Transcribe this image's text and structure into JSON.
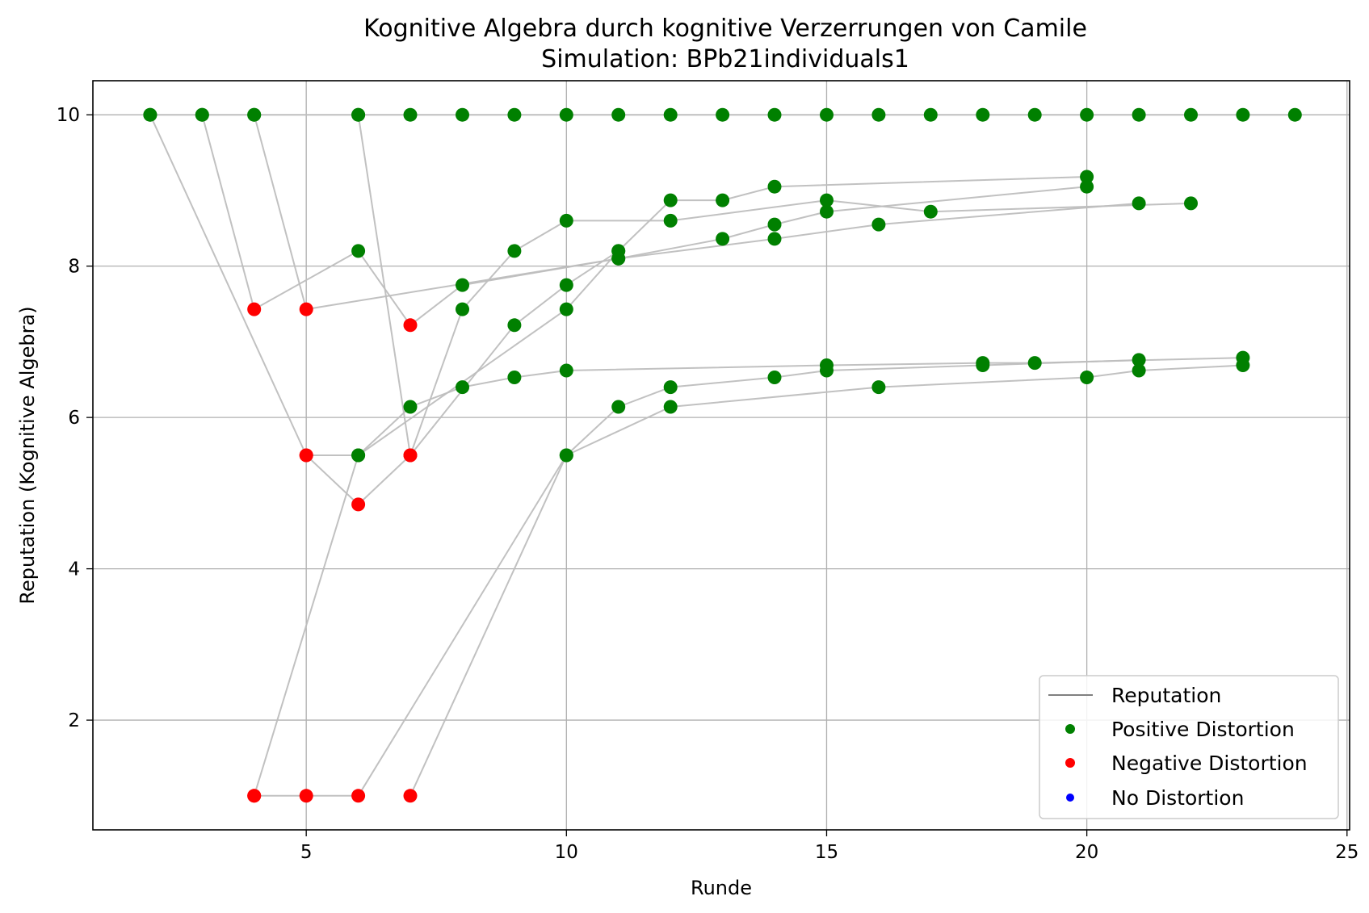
{
  "chart_data": {
    "type": "scatter",
    "title": "Kognitive Algebra durch kognitive Verzerrungen von Camile",
    "subtitle": "Simulation: BPb21individuals1",
    "xlabel": "Runde",
    "ylabel": "Reputation (Kognitive Algebra)",
    "xlim": [
      0.9,
      25.05
    ],
    "ylim": [
      0.55,
      10.45
    ],
    "xticks": [
      5,
      10,
      15,
      20,
      25
    ],
    "yticks": [
      2,
      4,
      6,
      8,
      10
    ],
    "grid": true,
    "legend": {
      "placement": "bottom-right",
      "entries": [
        {
          "label": "Reputation",
          "marker": "line",
          "color": "#808080"
        },
        {
          "label": "Positive Distortion",
          "marker": "dot",
          "color": "#008000"
        },
        {
          "label": "Negative Distortion",
          "marker": "dot",
          "color": "#ff0000"
        },
        {
          "label": "No Distortion",
          "marker": "dot",
          "color": "#0000ff"
        }
      ]
    },
    "colors": {
      "positive": "#008000",
      "negative": "#ff0000",
      "none": "#0000ff",
      "line": "#bebebe"
    },
    "series": [
      {
        "points": [
          [
            2,
            10
          ],
          [
            3,
            10
          ],
          [
            4,
            10
          ],
          [
            6,
            10
          ],
          [
            7,
            10
          ],
          [
            8,
            10
          ],
          [
            9,
            10
          ],
          [
            10,
            10
          ],
          [
            11,
            10
          ],
          [
            12,
            10
          ],
          [
            13,
            10
          ],
          [
            14,
            10
          ],
          [
            15,
            10
          ],
          [
            16,
            10
          ],
          [
            17,
            10
          ],
          [
            18,
            10
          ],
          [
            19,
            10
          ],
          [
            20,
            10
          ],
          [
            21,
            10
          ],
          [
            22,
            10
          ],
          [
            23,
            10
          ],
          [
            24,
            10
          ]
        ],
        "distortion": [
          "positive",
          "positive",
          "positive",
          "positive",
          "positive",
          "positive",
          "positive",
          "positive",
          "positive",
          "positive",
          "positive",
          "positive",
          "positive",
          "positive",
          "positive",
          "positive",
          "positive",
          "positive",
          "positive",
          "positive",
          "positive",
          "positive"
        ]
      },
      {
        "points": [
          [
            2,
            10
          ],
          [
            5,
            5.5
          ],
          [
            6,
            4.85
          ],
          [
            7,
            5.5
          ],
          [
            9,
            7.22
          ],
          [
            10,
            7.75
          ],
          [
            11,
            8.2
          ],
          [
            12,
            8.87
          ],
          [
            13,
            8.87
          ],
          [
            14,
            9.05
          ],
          [
            20,
            9.18
          ]
        ],
        "distortion": [
          "positive",
          "negative",
          "negative",
          "negative",
          "positive",
          "positive",
          "positive",
          "positive",
          "positive",
          "positive",
          "positive"
        ]
      },
      {
        "points": [
          [
            3,
            10
          ],
          [
            4,
            7.43
          ],
          [
            6,
            8.2
          ],
          [
            7,
            7.22
          ],
          [
            8,
            7.75
          ],
          [
            11,
            8.1
          ],
          [
            14,
            8.36
          ],
          [
            16,
            8.55
          ],
          [
            21,
            8.83
          ]
        ],
        "distortion": [
          "positive",
          "negative",
          "positive",
          "negative",
          "positive",
          "positive",
          "positive",
          "positive",
          "positive"
        ]
      },
      {
        "points": [
          [
            4,
            10
          ],
          [
            5,
            7.43
          ],
          [
            11,
            8.1
          ],
          [
            13,
            8.36
          ],
          [
            14,
            8.55
          ],
          [
            15,
            8.72
          ],
          [
            20,
            9.05
          ]
        ],
        "distortion": [
          "positive",
          "negative",
          "positive",
          "positive",
          "positive",
          "positive",
          "positive"
        ]
      },
      {
        "points": [
          [
            6,
            10
          ],
          [
            7,
            5.5
          ],
          [
            8,
            7.43
          ],
          [
            9,
            8.2
          ],
          [
            10,
            8.6
          ],
          [
            12,
            8.6
          ],
          [
            15,
            8.87
          ],
          [
            17,
            8.72
          ],
          [
            22,
            8.83
          ]
        ],
        "distortion": [
          "positive",
          "negative",
          "positive",
          "positive",
          "positive",
          "positive",
          "positive",
          "positive",
          "positive"
        ]
      },
      {
        "points": [
          [
            5,
            5.5
          ],
          [
            6,
            5.5
          ],
          [
            7,
            6.14
          ],
          [
            8,
            6.4
          ],
          [
            9,
            6.53
          ],
          [
            10,
            6.62
          ],
          [
            15,
            6.69
          ],
          [
            18,
            6.72
          ],
          [
            19,
            6.72
          ],
          [
            23,
            6.79
          ]
        ],
        "distortion": [
          "negative",
          "positive",
          "positive",
          "positive",
          "positive",
          "positive",
          "positive",
          "positive",
          "positive",
          "positive"
        ]
      },
      {
        "points": [
          [
            4,
            1
          ],
          [
            6,
            5.5
          ],
          [
            10,
            7.43
          ],
          [
            11,
            8.2
          ]
        ],
        "distortion": [
          "negative",
          "positive",
          "positive",
          "positive"
        ]
      },
      {
        "points": [
          [
            4,
            1
          ],
          [
            5,
            1
          ],
          [
            6,
            1
          ],
          [
            10,
            5.5
          ],
          [
            11,
            6.14
          ],
          [
            12,
            6.4
          ],
          [
            14,
            6.53
          ],
          [
            15,
            6.62
          ],
          [
            18,
            6.69
          ],
          [
            21,
            6.76
          ]
        ],
        "distortion": [
          "negative",
          "negative",
          "negative",
          "positive",
          "positive",
          "positive",
          "positive",
          "positive",
          "positive",
          "positive"
        ]
      },
      {
        "points": [
          [
            7,
            1
          ],
          [
            10,
            5.5
          ],
          [
            12,
            6.14
          ],
          [
            16,
            6.4
          ],
          [
            20,
            6.53
          ],
          [
            21,
            6.62
          ],
          [
            23,
            6.69
          ]
        ],
        "distortion": [
          "negative",
          "positive",
          "positive",
          "positive",
          "positive",
          "positive",
          "positive"
        ]
      }
    ]
  }
}
